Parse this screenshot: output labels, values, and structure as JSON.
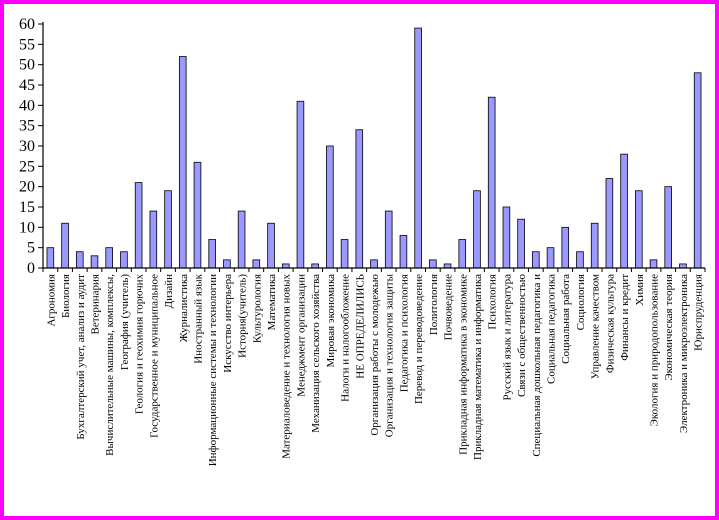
{
  "chart_data": {
    "type": "bar",
    "title": "",
    "xlabel": "",
    "ylabel": "",
    "ylim": [
      0,
      60
    ],
    "yticks": [
      0,
      5,
      10,
      15,
      20,
      25,
      30,
      35,
      40,
      45,
      50,
      55,
      60
    ],
    "grid": false,
    "legend": "none",
    "bar_color": "#9999ff",
    "bar_border": "#000000",
    "frame_color": "#ff00ff",
    "categories": [
      "Агрономия",
      "Биология",
      "Бухгалтерский учет, анализ и аудит",
      "Ветеринария",
      "Вычислительные машины, комплексы,",
      "География (учитель)",
      "Геология и геохимия горючих",
      "Государственное и муниципальное",
      "Дизайн",
      "Журналистика",
      "Иностранный язык",
      "Информационные системы и технологии",
      "Искусство интерьера",
      "История(учитель)",
      "Культурология",
      "Математика",
      "Материаловедение и технология новых",
      "Менеджмент организации",
      "Механизация сельского хозяйства",
      "Мировая экономика",
      "Налоги и налогообложение",
      "НЕ ОПРЕДЕЛИЛИСЬ",
      "Организация работы с молодежью",
      "Организация и технология защиты",
      "Педагогика и психология",
      "Перевод и переводоведение",
      "Политология",
      "Почвоведение",
      "Прикладная информатика в экономике",
      "Прикладная математика и информатика",
      "Психология",
      "Русский язык и литература",
      "Связи с общественностью",
      "Специальная дошкольная педагогика и",
      "Социальная педагогика",
      "Социальная работа",
      "Социология",
      "Управление качеством",
      "Физическая культура",
      "Финансы и кредит",
      "Химия",
      "Экология и природопользование",
      "Экономическая теория",
      "Электроника и микроэлектроника",
      "Юриспруденция"
    ],
    "values": [
      5,
      11,
      4,
      3,
      5,
      4,
      21,
      14,
      19,
      52,
      26,
      7,
      2,
      14,
      2,
      11,
      1,
      41,
      1,
      30,
      7,
      34,
      2,
      14,
      8,
      59,
      2,
      1,
      7,
      19,
      42,
      15,
      12,
      4,
      5,
      10,
      4,
      11,
      22,
      28,
      19,
      2,
      20,
      1,
      48
    ]
  }
}
